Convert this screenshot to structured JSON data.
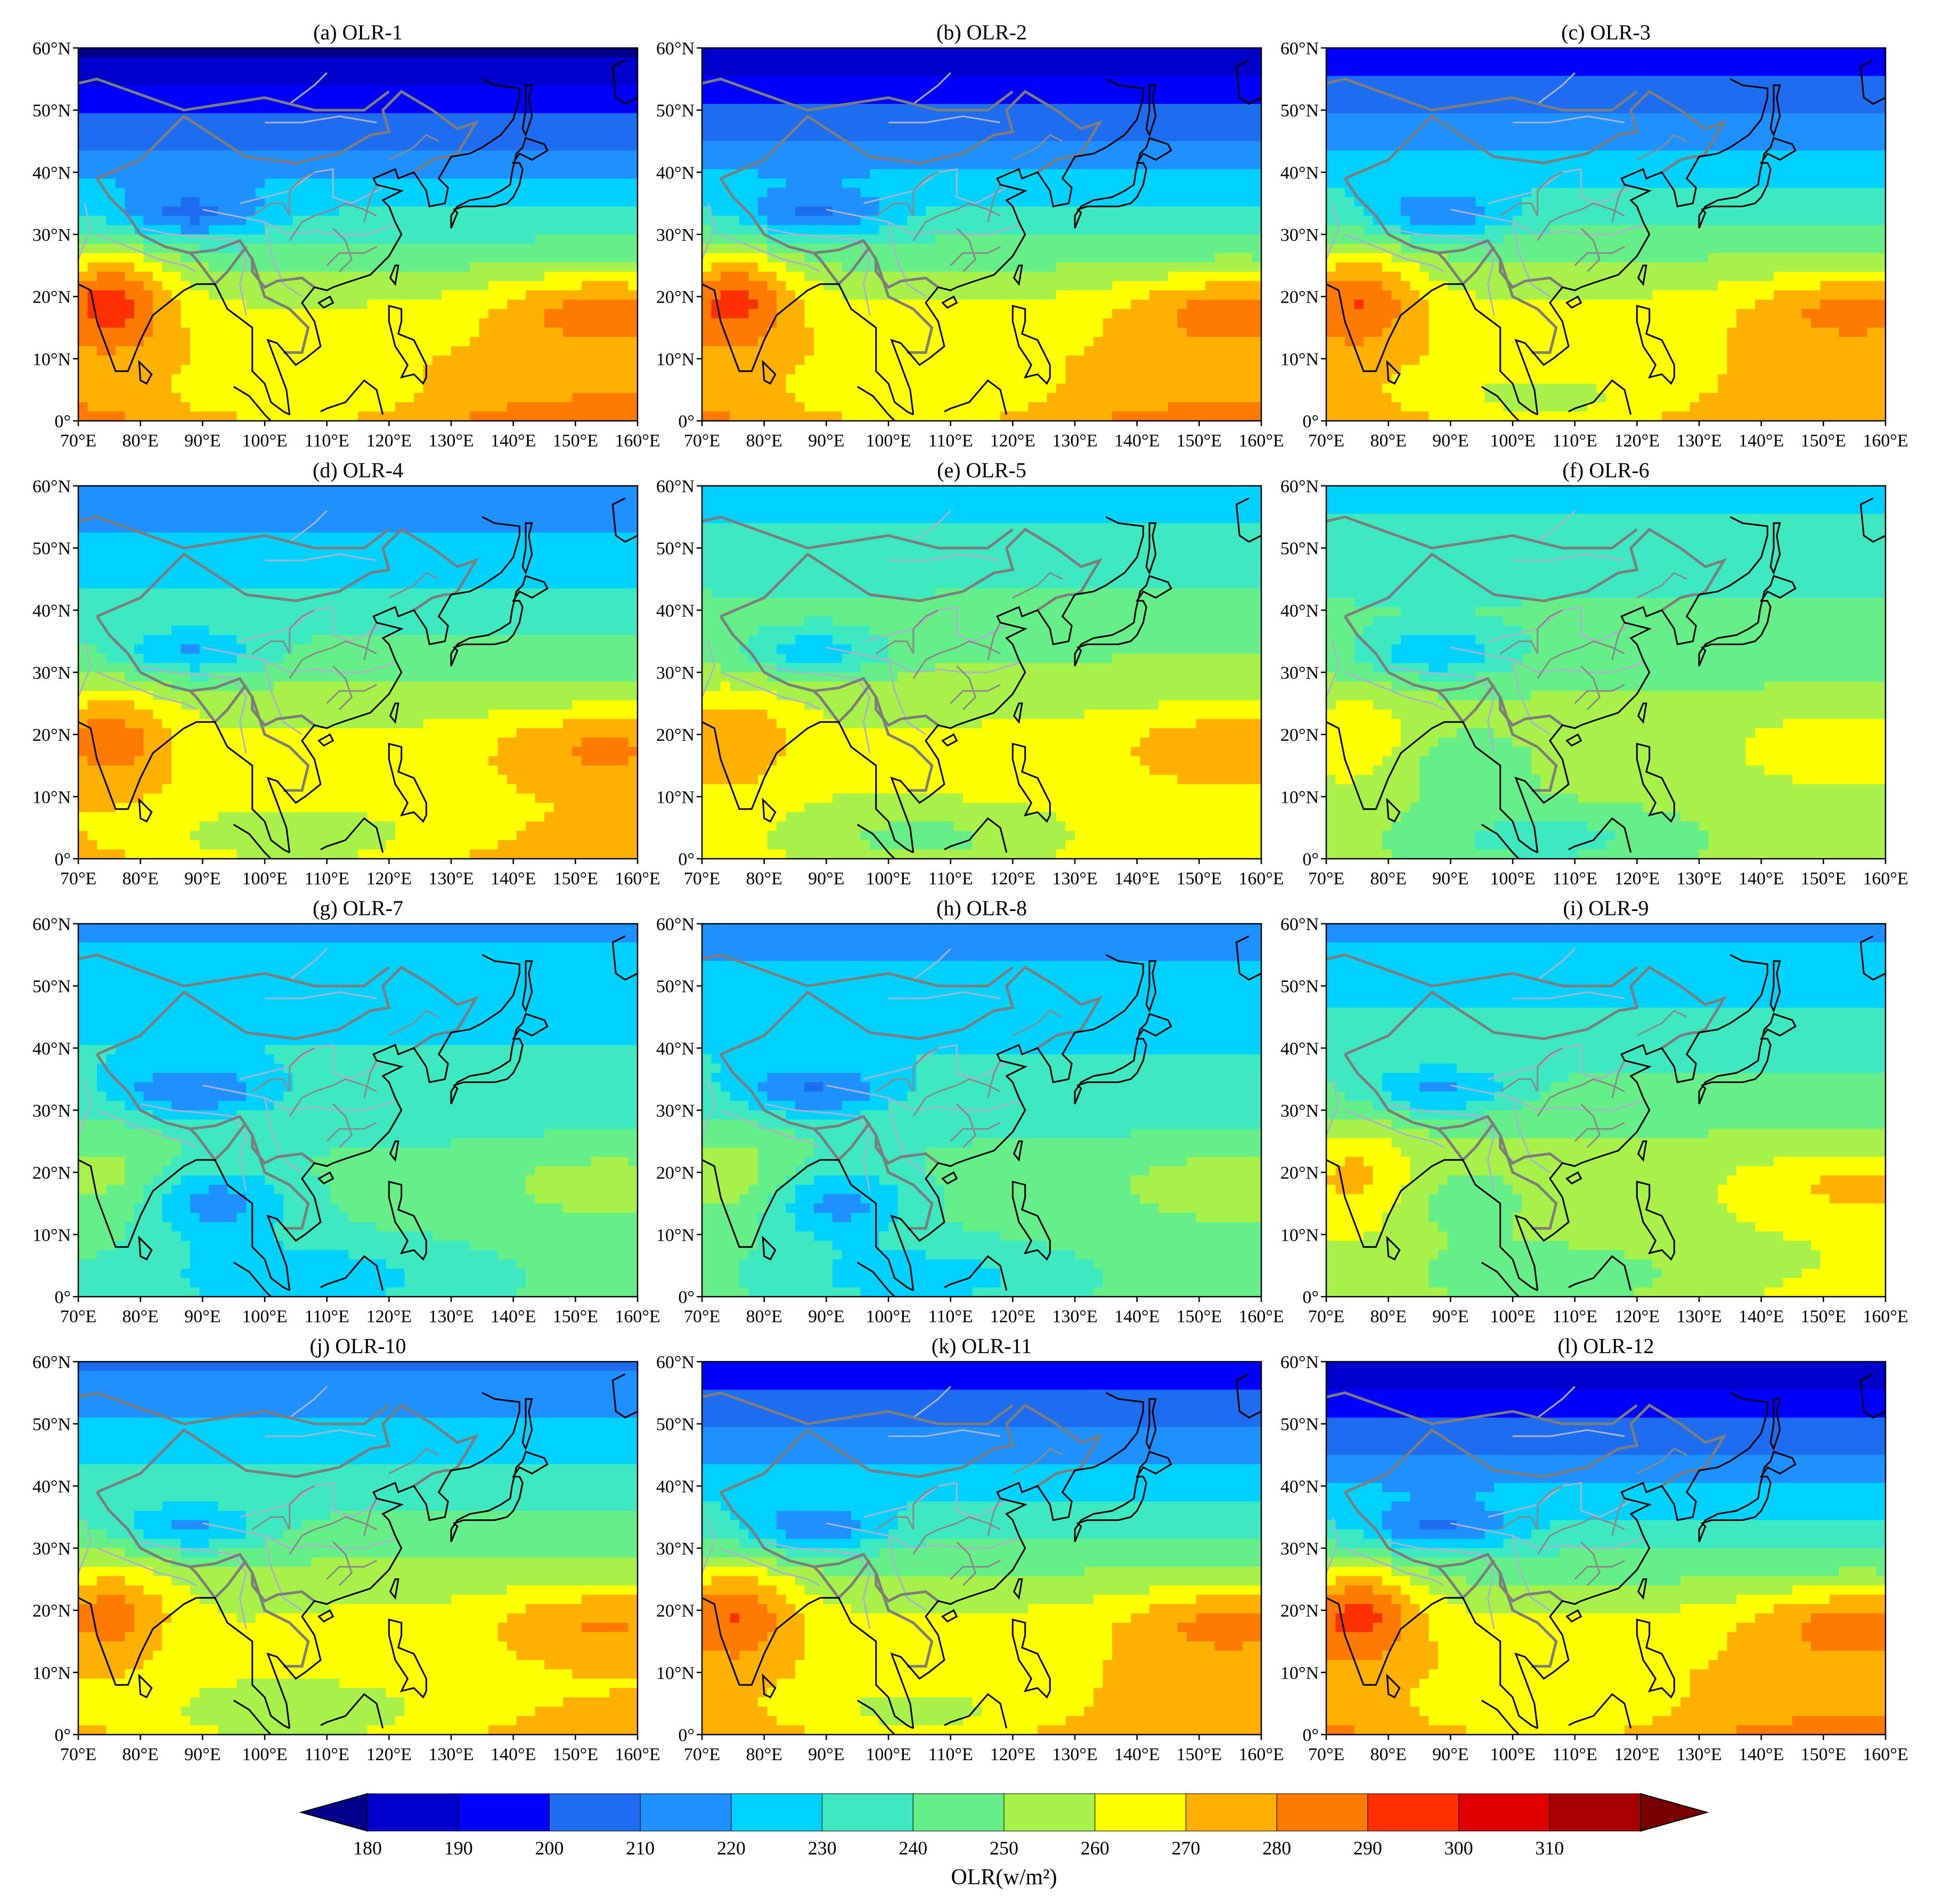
{
  "panels": [
    {
      "title": "(a) OLR-1",
      "month": 1
    },
    {
      "title": "(b) OLR-2",
      "month": 2
    },
    {
      "title": "(c) OLR-3",
      "month": 3
    },
    {
      "title": "(d) OLR-4",
      "month": 4
    },
    {
      "title": "(e) OLR-5",
      "month": 5
    },
    {
      "title": "(f) OLR-6",
      "month": 6
    },
    {
      "title": "(g) OLR-7",
      "month": 7
    },
    {
      "title": "(h) OLR-8",
      "month": 8
    },
    {
      "title": "(i) OLR-9",
      "month": 9
    },
    {
      "title": "(j) OLR-10",
      "month": 10
    },
    {
      "title": "(k) OLR-11",
      "month": 11
    },
    {
      "title": "(l) OLR-12",
      "month": 12
    }
  ],
  "axes": {
    "lon_range": [
      70,
      160
    ],
    "lat_range": [
      0,
      60
    ],
    "x_ticks": [
      "70°E",
      "80°E",
      "90°E",
      "100°E",
      "110°E",
      "120°E",
      "130°E",
      "140°E",
      "150°E",
      "160°E"
    ],
    "y_ticks": [
      "0°",
      "10°N",
      "20°N",
      "30°N",
      "40°N",
      "50°N",
      "60°N"
    ]
  },
  "colorbar": {
    "title": "OLR(w/m²)",
    "levels": [
      "180",
      "190",
      "200",
      "210",
      "220",
      "230",
      "240",
      "250",
      "260",
      "270",
      "280",
      "290",
      "300",
      "310"
    ],
    "colors": [
      "#00008b",
      "#0000cd",
      "#0000ff",
      "#1e6cf0",
      "#1e90ff",
      "#00d2ff",
      "#3ee8c0",
      "#66ee88",
      "#a8f04a",
      "#ffff00",
      "#ffb000",
      "#ff7a00",
      "#ff3000",
      "#e00000",
      "#a80000",
      "#7a0000"
    ],
    "extend": "both"
  },
  "chart_data": {
    "type": "heatmap",
    "title": "",
    "xlabel": "",
    "ylabel": "",
    "colorbar_label": "OLR(w/m²)",
    "units": "w/m²",
    "value_range": [
      180,
      310
    ],
    "x_extent": [
      70,
      160
    ],
    "y_extent": [
      0,
      60
    ]
  }
}
